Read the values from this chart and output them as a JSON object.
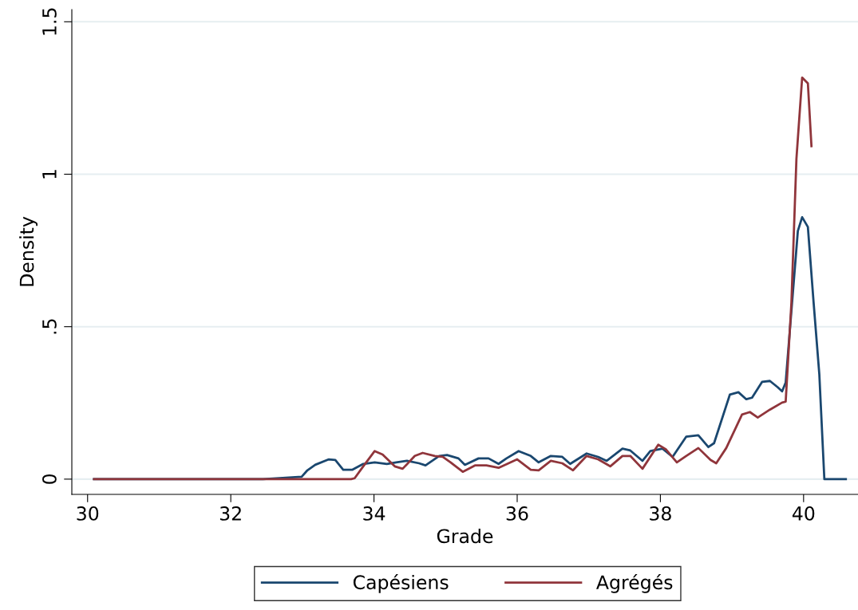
{
  "chart_data": {
    "type": "line",
    "xlabel": "Grade",
    "ylabel": "Density",
    "xlim": [
      29.78,
      40.76
    ],
    "ylim": [
      -0.05,
      1.54
    ],
    "xticks": [
      30,
      32,
      34,
      36,
      38,
      40
    ],
    "yticks": [
      0,
      {
        "value": 0.5,
        "label": ".5"
      },
      1,
      1.5
    ],
    "grid": "y",
    "legend": "bottom",
    "marker": "none",
    "line_style": "solid",
    "series": [
      {
        "name": "Capésiens",
        "color": "#1a476f",
        "x": [
          30.09,
          32.45,
          32.68,
          32.99,
          33.07,
          33.18,
          33.37,
          33.46,
          33.57,
          33.7,
          33.85,
          34.01,
          34.18,
          34.31,
          34.46,
          34.63,
          34.72,
          34.91,
          35.02,
          35.18,
          35.27,
          35.46,
          35.6,
          35.74,
          35.85,
          36.02,
          36.19,
          36.3,
          36.47,
          36.63,
          36.74,
          36.97,
          37.13,
          37.25,
          37.47,
          37.58,
          37.75,
          37.86,
          38.03,
          38.17,
          38.36,
          38.53,
          38.67,
          38.75,
          38.97,
          39.09,
          39.2,
          39.28,
          39.42,
          39.53,
          39.64,
          39.7,
          39.75,
          39.83,
          39.92,
          39.98,
          40.06,
          40.14,
          40.22,
          40.29,
          40.59
        ],
        "values": [
          0,
          0,
          0.003,
          0.008,
          0.029,
          0.047,
          0.065,
          0.063,
          0.031,
          0.031,
          0.05,
          0.055,
          0.05,
          0.055,
          0.06,
          0.052,
          0.045,
          0.076,
          0.079,
          0.068,
          0.047,
          0.068,
          0.068,
          0.05,
          0.068,
          0.092,
          0.076,
          0.055,
          0.076,
          0.073,
          0.05,
          0.084,
          0.073,
          0.06,
          0.1,
          0.094,
          0.06,
          0.092,
          0.1,
          0.073,
          0.139,
          0.144,
          0.105,
          0.118,
          0.277,
          0.285,
          0.262,
          0.267,
          0.319,
          0.322,
          0.301,
          0.288,
          0.317,
          0.552,
          0.814,
          0.859,
          0.827,
          0.579,
          0.343,
          0,
          0
        ]
      },
      {
        "name": "Agrégés",
        "color": "#90353b",
        "x": [
          30.09,
          33.68,
          33.73,
          33.85,
          34.01,
          34.12,
          34.29,
          34.4,
          34.57,
          34.68,
          34.85,
          34.96,
          35.07,
          35.24,
          35.41,
          35.57,
          35.74,
          36.0,
          36.19,
          36.3,
          36.47,
          36.63,
          36.78,
          36.97,
          37.13,
          37.3,
          37.47,
          37.58,
          37.75,
          37.97,
          38.08,
          38.23,
          38.36,
          38.53,
          38.7,
          38.78,
          38.92,
          39.14,
          39.25,
          39.36,
          39.53,
          39.7,
          39.75,
          39.83,
          39.9,
          39.98,
          40.06,
          40.11
        ],
        "values": [
          0,
          0,
          0.003,
          0.042,
          0.092,
          0.081,
          0.042,
          0.034,
          0.076,
          0.086,
          0.076,
          0.073,
          0.055,
          0.024,
          0.045,
          0.045,
          0.037,
          0.065,
          0.031,
          0.029,
          0.06,
          0.052,
          0.029,
          0.076,
          0.065,
          0.042,
          0.076,
          0.076,
          0.034,
          0.113,
          0.097,
          0.055,
          0.076,
          0.102,
          0.063,
          0.052,
          0.102,
          0.212,
          0.22,
          0.202,
          0.228,
          0.251,
          0.254,
          0.579,
          1.05,
          1.317,
          1.298,
          1.092
        ]
      }
    ]
  }
}
